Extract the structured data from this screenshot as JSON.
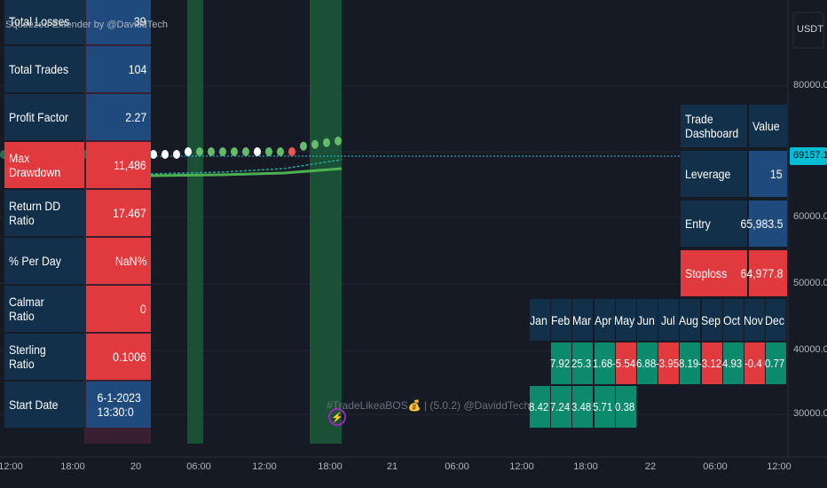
{
  "watermark": "Squeezed Extender by @DaviddTech",
  "footer_watermark": "#TradeLikeaBOS💰 | (5.0.2) @DaviddTech",
  "stats": {
    "rows": [
      [
        "Total Losses",
        "39"
      ],
      [
        "Total Trades",
        "104"
      ],
      [
        "Profit Factor",
        "2.27"
      ],
      [
        "Max Drawdown",
        "11,486"
      ],
      [
        "Return DD Ratio",
        "17.467"
      ],
      [
        "% Per Day",
        "NaN%"
      ],
      [
        "Calmar Ratio",
        "0"
      ],
      [
        "Sterling Ratio",
        "0.1006"
      ],
      [
        "Start Date",
        "6-1-2023 13:30:0"
      ]
    ]
  },
  "dashboard": {
    "header": [
      "Trade Dashboard",
      "Value"
    ],
    "rows": [
      [
        "Leverage",
        "15"
      ],
      [
        "Entry",
        "65,983.5"
      ],
      [
        "Stoploss",
        "64,977.8"
      ]
    ]
  },
  "monthly": {
    "months": [
      "Jan",
      "Feb",
      "Mar",
      "Apr",
      "May",
      "Jun",
      "Jul",
      "Aug",
      "Sep",
      "Oct",
      "Nov",
      "Dec"
    ],
    "rows": [
      [
        null,
        "7.92",
        "25.3",
        "1.68",
        "-5.54",
        "6.88",
        "-3.95",
        "8.19",
        "-3.12",
        "4.93",
        "-0.4",
        "0.77"
      ],
      [
        "8.42",
        "7.24",
        "3.48",
        "5.71",
        "0.38",
        null,
        null,
        null,
        null,
        null,
        null,
        null
      ]
    ]
  },
  "price_axis": {
    "currency": "USDT",
    "labels": [
      "80000.0",
      "60000.0",
      "50000.0",
      "40000.0",
      "30000.0"
    ],
    "last_price": "69157.1"
  },
  "time_axis": {
    "labels": [
      "12:00",
      "18:00",
      "20",
      "06:00",
      "12:00",
      "18:00",
      "21",
      "06:00",
      "12:00",
      "18:00",
      "22",
      "06:00",
      "12:00"
    ]
  }
}
